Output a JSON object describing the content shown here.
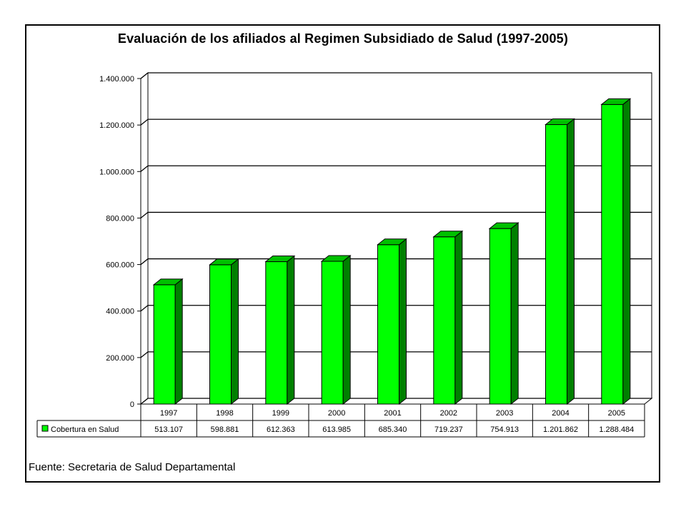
{
  "chart_data": {
    "type": "bar",
    "title": "Evaluación de los afiliados al Regimen Subsidiado de Salud (1997-2005)",
    "categories": [
      "1997",
      "1998",
      "1999",
      "2000",
      "2001",
      "2002",
      "2003",
      "2004",
      "2005"
    ],
    "series": [
      {
        "name": "Cobertura en Salud",
        "values": [
          513107,
          598881,
          612363,
          613985,
          685340,
          719237,
          754913,
          1201862,
          1288484
        ],
        "labels": [
          "513.107",
          "598.881",
          "612.363",
          "613.985",
          "685.340",
          "719.237",
          "754.913",
          "1.201.862",
          "1.288.484"
        ]
      }
    ],
    "ylim": [
      0,
      1400000
    ],
    "yticks": [
      0,
      200000,
      400000,
      600000,
      800000,
      1000000,
      1200000,
      1400000
    ],
    "ytick_labels": [
      "0",
      "200.000",
      "400.000",
      "600.000",
      "800.000",
      "1.000.000",
      "1.200.000",
      "1.400.000"
    ],
    "grid": true,
    "bar_color": "#00ff00",
    "legend": "data-table"
  },
  "source_note": "Fuente:  Secretaria de Salud Departamental"
}
